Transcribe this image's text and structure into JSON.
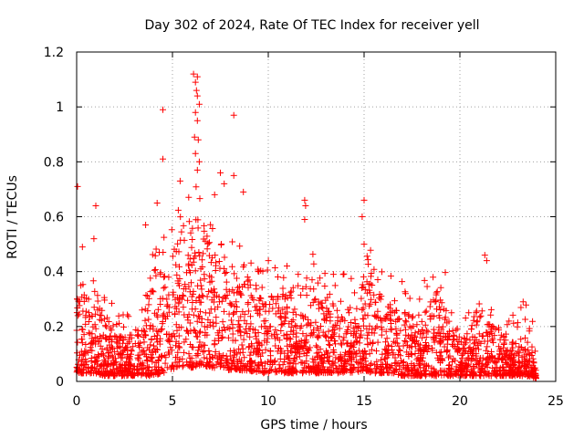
{
  "chart_data": {
    "type": "scatter",
    "title": "Day 302 of 2024, Rate Of TEC Index for receiver yell",
    "xlabel": "GPS time / hours",
    "ylabel": "ROTI / TECUs",
    "xlim": [
      0,
      25
    ],
    "ylim": [
      0,
      1.2
    ],
    "x_ticks": [
      0,
      5,
      10,
      15,
      20,
      25
    ],
    "y_ticks": [
      0,
      0.2,
      0.4,
      0.6,
      0.8,
      1,
      1.2
    ],
    "x_tick_labels": [
      "0",
      "5",
      "10",
      "15",
      "20",
      "25"
    ],
    "y_tick_labels": [
      "0",
      "0.2",
      "0.4",
      "0.6",
      "0.8",
      "1",
      "1.2"
    ],
    "grid": true,
    "marker": "+",
    "series_color": "#ff0000",
    "envelope": {
      "hours": [
        0,
        0.5,
        1,
        1.5,
        2,
        2.5,
        3,
        3.5,
        4,
        4.5,
        5,
        5.5,
        6,
        6.5,
        7,
        7.5,
        8,
        8.5,
        9,
        9.5,
        10,
        10.5,
        11,
        11.5,
        12,
        12.5,
        13,
        13.5,
        14,
        14.5,
        15,
        15.5,
        16,
        16.5,
        17,
        17.5,
        18,
        18.5,
        19,
        19.5,
        20,
        20.5,
        21,
        21.5,
        22,
        22.5,
        23,
        23.5,
        24
      ],
      "typical_max": [
        0.3,
        0.32,
        0.35,
        0.25,
        0.18,
        0.17,
        0.17,
        0.3,
        0.42,
        0.45,
        0.48,
        0.52,
        0.6,
        0.6,
        0.5,
        0.45,
        0.42,
        0.4,
        0.38,
        0.35,
        0.35,
        0.32,
        0.32,
        0.3,
        0.42,
        0.32,
        0.3,
        0.28,
        0.28,
        0.3,
        0.4,
        0.35,
        0.3,
        0.28,
        0.25,
        0.26,
        0.25,
        0.3,
        0.35,
        0.2,
        0.18,
        0.18,
        0.3,
        0.22,
        0.2,
        0.15,
        0.14,
        0.18,
        0.05
      ],
      "typical_min": [
        0.03,
        0.03,
        0.03,
        0.02,
        0.02,
        0.02,
        0.02,
        0.02,
        0.02,
        0.03,
        0.04,
        0.05,
        0.05,
        0.06,
        0.05,
        0.05,
        0.04,
        0.04,
        0.04,
        0.03,
        0.03,
        0.03,
        0.03,
        0.03,
        0.03,
        0.03,
        0.03,
        0.03,
        0.03,
        0.03,
        0.04,
        0.03,
        0.03,
        0.03,
        0.02,
        0.02,
        0.02,
        0.02,
        0.02,
        0.02,
        0.02,
        0.02,
        0.02,
        0.02,
        0.02,
        0.02,
        0.02,
        0.02,
        0.01
      ]
    },
    "outliers": [
      {
        "x": 0.05,
        "y": 0.71
      },
      {
        "x": 0.3,
        "y": 0.49
      },
      {
        "x": 1.0,
        "y": 0.64
      },
      {
        "x": 0.9,
        "y": 0.52
      },
      {
        "x": 3.6,
        "y": 0.57
      },
      {
        "x": 4.2,
        "y": 0.65
      },
      {
        "x": 4.5,
        "y": 0.99
      },
      {
        "x": 4.5,
        "y": 0.81
      },
      {
        "x": 5.4,
        "y": 0.73
      },
      {
        "x": 6.1,
        "y": 1.12
      },
      {
        "x": 6.3,
        "y": 1.11
      },
      {
        "x": 6.2,
        "y": 1.09
      },
      {
        "x": 6.25,
        "y": 1.06
      },
      {
        "x": 6.3,
        "y": 1.04
      },
      {
        "x": 6.4,
        "y": 1.01
      },
      {
        "x": 6.2,
        "y": 0.98
      },
      {
        "x": 6.3,
        "y": 0.95
      },
      {
        "x": 6.15,
        "y": 0.89
      },
      {
        "x": 6.35,
        "y": 0.88
      },
      {
        "x": 6.2,
        "y": 0.83
      },
      {
        "x": 6.4,
        "y": 0.8
      },
      {
        "x": 6.3,
        "y": 0.77
      },
      {
        "x": 7.5,
        "y": 0.76
      },
      {
        "x": 7.7,
        "y": 0.72
      },
      {
        "x": 8.2,
        "y": 0.97
      },
      {
        "x": 8.2,
        "y": 0.75
      },
      {
        "x": 7.2,
        "y": 0.68
      },
      {
        "x": 8.7,
        "y": 0.69
      },
      {
        "x": 11.9,
        "y": 0.66
      },
      {
        "x": 11.95,
        "y": 0.64
      },
      {
        "x": 11.9,
        "y": 0.59
      },
      {
        "x": 15.0,
        "y": 0.66
      },
      {
        "x": 14.9,
        "y": 0.6
      },
      {
        "x": 15.0,
        "y": 0.5
      },
      {
        "x": 18.6,
        "y": 0.38
      },
      {
        "x": 21.3,
        "y": 0.46
      },
      {
        "x": 21.4,
        "y": 0.44
      },
      {
        "x": 23.3,
        "y": 0.29
      }
    ]
  }
}
